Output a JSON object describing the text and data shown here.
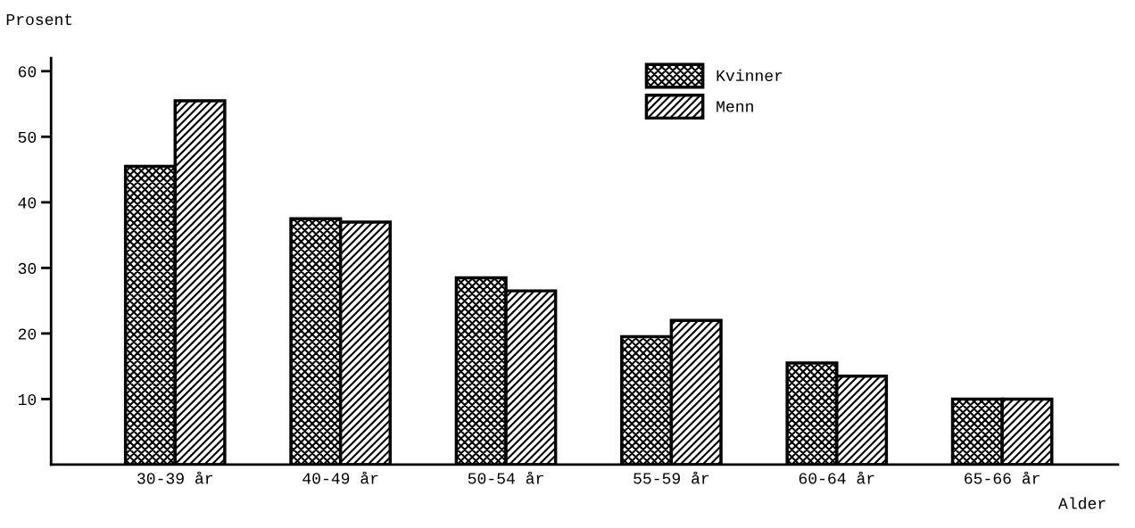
{
  "chart_data": {
    "type": "bar",
    "ylabel": "Prosent",
    "xlabel": "Alder",
    "categories": [
      "30-39 år",
      "40-49 år",
      "50-54 år",
      "55-59 år",
      "60-64 år",
      "65-66 år"
    ],
    "series": [
      {
        "name": "Kvinner",
        "color": "#000000",
        "values": [
          45.5,
          37.5,
          28.5,
          19.5,
          15.5,
          10
        ]
      },
      {
        "name": "Menn",
        "color": "#000000",
        "values": [
          55.5,
          37,
          26.5,
          22,
          13.5,
          10
        ]
      }
    ],
    "ylim": [
      0,
      62
    ],
    "yticks": [
      10,
      20,
      30,
      40,
      50,
      60
    ],
    "grid": false,
    "legend": "top right"
  }
}
